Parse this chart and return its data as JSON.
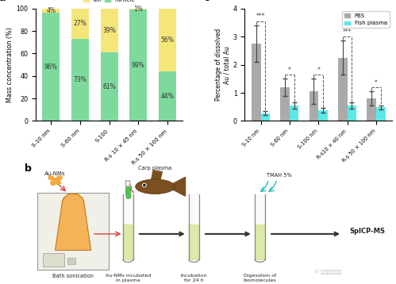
{
  "panel_a": {
    "categories": [
      "S-10 nm",
      "S-60 nm",
      "S-100",
      "R-s 10 × 45 nm",
      "R-s 50 × 100 nm"
    ],
    "particle_pct": [
      96,
      73,
      61,
      99,
      44
    ],
    "ion_pct": [
      4,
      27,
      39,
      1,
      56
    ],
    "particle_color": "#7ED99C",
    "ion_color": "#F5E67A",
    "particle_label": "Particle",
    "ion_label": "Ion",
    "ylabel": "Mass concentration (%)",
    "ylim": [
      0,
      100
    ],
    "title": "a"
  },
  "panel_c": {
    "categories": [
      "S-10 nm",
      "S-60 nm",
      "S-100 nm",
      "R-s10 × 40 nm",
      "R-s 50 × 100 nm"
    ],
    "pbs_mean": [
      2.75,
      1.2,
      1.05,
      2.25,
      0.8
    ],
    "pbs_err": [
      0.65,
      0.3,
      0.45,
      0.6,
      0.25
    ],
    "fish_mean": [
      0.28,
      0.55,
      0.38,
      0.55,
      0.48
    ],
    "fish_err": [
      0.08,
      0.1,
      0.08,
      0.1,
      0.08
    ],
    "pbs_color": "#AAAAAA",
    "fish_color": "#5DE8E8",
    "pbs_label": "PBS",
    "fish_label": "Fish plasma",
    "ylabel": "Percentage of dissolved\nAu / total Au",
    "ylim": [
      0,
      4
    ],
    "yticks": [
      0,
      1,
      2,
      3,
      4
    ],
    "significance": [
      "***",
      "*",
      "*",
      "***",
      "*"
    ],
    "title": "c"
  },
  "panel_b": {
    "title": "b",
    "red_arrow": "#D94040",
    "teal_arrow": "#30B8B8",
    "black_arrow": "#333333",
    "sonicator_face": "#F0EFE8",
    "sonicator_edge": "#999999",
    "flask_fill": "#F5A840",
    "flask_edge": "#C07820",
    "tube_edge": "#888888",
    "liquid_color": "#D8E8A0",
    "fish_color": "#7B4F20",
    "pipette_green": "#44BB44",
    "text_color": "#222222"
  },
  "background_color": "#FFFFFF",
  "watermark": "中国生物技术网"
}
